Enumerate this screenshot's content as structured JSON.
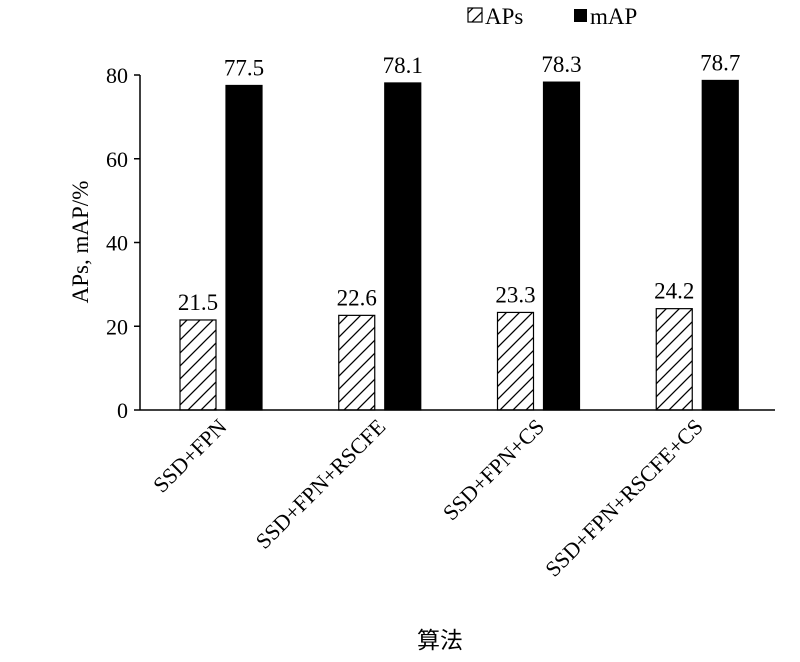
{
  "chart_data": {
    "type": "bar",
    "categories": [
      "SSD+FPN",
      "SSD+FPN+RSCFE",
      "SSD+FPN+CS",
      "SSD+FPN+RSCFE+CS"
    ],
    "series": [
      {
        "name": "APs",
        "values": [
          21.5,
          22.6,
          23.3,
          24.2
        ],
        "pattern": "hatched",
        "color": "#ffffff"
      },
      {
        "name": "mAP",
        "values": [
          77.5,
          78.1,
          78.3,
          78.7
        ],
        "pattern": "solid",
        "color": "#000000"
      }
    ],
    "data_labels": [
      [
        "21.5",
        "22.6",
        "23.3",
        "24.2"
      ],
      [
        "77.5",
        "78.1",
        "78.3",
        "78.7"
      ]
    ],
    "title": "",
    "xlabel": "算法",
    "ylabel": "APs, mAP/%",
    "ylim": [
      0,
      80
    ],
    "yticks": [
      0,
      20,
      40,
      60,
      80
    ],
    "grid": false,
    "legend_position": "top-right"
  }
}
